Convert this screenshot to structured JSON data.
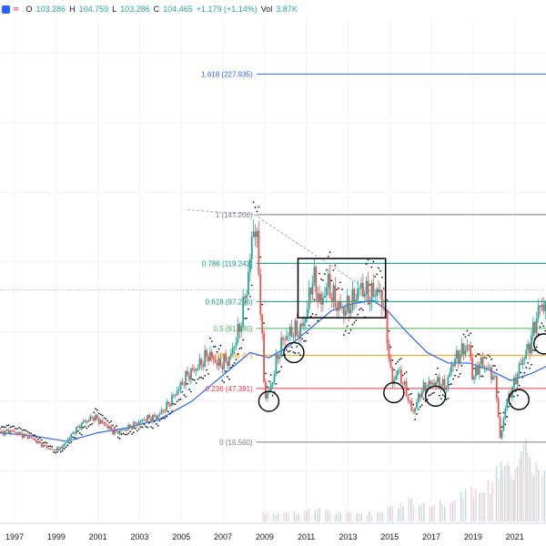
{
  "legend": {
    "open_label": "O",
    "open": "103.286",
    "high_label": "H",
    "high": "104.759",
    "low_label": "L",
    "low": "103.286",
    "close_label": "C",
    "close": "104.465",
    "change": "+1.179 (+1.14%)",
    "vol_label": "Vol",
    "vol": "3.87K",
    "icon": "equals-icon"
  },
  "chart_data": {
    "type": "candlestick",
    "x_ticks": [
      "1997",
      "1999",
      "2001",
      "2003",
      "2005",
      "2007",
      "2009",
      "2011",
      "2013",
      "2015",
      "2017",
      "2019",
      "2021"
    ],
    "xlim": [
      1996.3,
      2022.5
    ],
    "ylim": [
      -30,
      260
    ],
    "fib_levels": [
      {
        "label": "1.618 (227.935)",
        "ratio": 1.618,
        "price": 227.935,
        "color": "#2962ff"
      },
      {
        "label": "1 (147.200)",
        "ratio": 1,
        "price": 147.2,
        "color": "#787b86"
      },
      {
        "label": "0.786 (119.243)",
        "ratio": 0.786,
        "price": 119.243,
        "color": "#089981"
      },
      {
        "label": "0.618 (97.296)",
        "ratio": 0.618,
        "price": 97.296,
        "color": "#089981"
      },
      {
        "label": "0.5 (81.880)",
        "ratio": 0.5,
        "price": 81.88,
        "color": "#4caf50"
      },
      {
        "label": "0.382 (66.4..)",
        "ratio": 0.382,
        "price": 66.46,
        "color": "#ff9800"
      },
      {
        "label": "0.236 (47.391)",
        "ratio": 0.236,
        "price": 47.391,
        "color": "#f23645"
      },
      {
        "label": "0 (16.560)",
        "ratio": 0,
        "price": 16.56,
        "color": "#787b86"
      }
    ],
    "price_series": [
      [
        1996.3,
        22
      ],
      [
        1996.8,
        23
      ],
      [
        1997.3,
        21
      ],
      [
        1997.8,
        19
      ],
      [
        1998.3,
        15
      ],
      [
        1998.8,
        12
      ],
      [
        1999.3,
        14
      ],
      [
        1999.8,
        22
      ],
      [
        2000.3,
        28
      ],
      [
        2000.8,
        31
      ],
      [
        2001.3,
        27
      ],
      [
        2001.8,
        22
      ],
      [
        2002.3,
        24
      ],
      [
        2002.8,
        27
      ],
      [
        2003.3,
        30
      ],
      [
        2003.8,
        31
      ],
      [
        2004.3,
        37
      ],
      [
        2004.8,
        46
      ],
      [
        2005.3,
        55
      ],
      [
        2005.8,
        60
      ],
      [
        2006.3,
        67
      ],
      [
        2006.8,
        61
      ],
      [
        2007.3,
        64
      ],
      [
        2007.8,
        82
      ],
      [
        2008.2,
        110
      ],
      [
        2008.5,
        145
      ],
      [
        2008.7,
        120
      ],
      [
        2008.9,
        70
      ],
      [
        2009.0,
        42
      ],
      [
        2009.3,
        48
      ],
      [
        2009.6,
        65
      ],
      [
        2009.9,
        76
      ],
      [
        2010.3,
        80
      ],
      [
        2010.7,
        80
      ],
      [
        2011.0,
        90
      ],
      [
        2011.3,
        112
      ],
      [
        2011.7,
        95
      ],
      [
        2012.0,
        108
      ],
      [
        2012.4,
        96
      ],
      [
        2012.8,
        92
      ],
      [
        2013.2,
        97
      ],
      [
        2013.6,
        106
      ],
      [
        2014.0,
        100
      ],
      [
        2014.4,
        104
      ],
      [
        2014.7,
        97
      ],
      [
        2014.9,
        75
      ],
      [
        2015.1,
        50
      ],
      [
        2015.4,
        58
      ],
      [
        2015.8,
        45
      ],
      [
        2016.1,
        33
      ],
      [
        2016.5,
        46
      ],
      [
        2016.9,
        50
      ],
      [
        2017.3,
        51
      ],
      [
        2017.7,
        48
      ],
      [
        2018.0,
        62
      ],
      [
        2018.4,
        68
      ],
      [
        2018.8,
        72
      ],
      [
        2019.0,
        52
      ],
      [
        2019.3,
        62
      ],
      [
        2019.8,
        58
      ],
      [
        2020.1,
        50
      ],
      [
        2020.3,
        18
      ],
      [
        2020.6,
        40
      ],
      [
        2020.9,
        48
      ],
      [
        2021.3,
        62
      ],
      [
        2021.7,
        72
      ],
      [
        2022.2,
        95
      ]
    ],
    "ma_series": [
      [
        1996.3,
        22
      ],
      [
        1998.0,
        20
      ],
      [
        1999.5,
        17
      ],
      [
        2001.0,
        22
      ],
      [
        2002.5,
        25
      ],
      [
        2004.0,
        30
      ],
      [
        2005.5,
        40
      ],
      [
        2007.0,
        55
      ],
      [
        2008.3,
        68
      ],
      [
        2009.2,
        65
      ],
      [
        2010.2,
        72
      ],
      [
        2011.2,
        82
      ],
      [
        2012.2,
        92
      ],
      [
        2013.2,
        96
      ],
      [
        2014.2,
        98
      ],
      [
        2014.9,
        92
      ],
      [
        2015.8,
        80
      ],
      [
        2016.8,
        68
      ],
      [
        2017.8,
        62
      ],
      [
        2018.8,
        62
      ],
      [
        2019.8,
        58
      ],
      [
        2020.8,
        52
      ],
      [
        2021.8,
        56
      ],
      [
        2022.5,
        60
      ]
    ],
    "marked_regions": [
      {
        "type": "rectangle",
        "x": [
          2010.6,
          2014.8
        ],
        "y": [
          88,
          122
        ]
      },
      {
        "type": "ellipse",
        "x": 2009.2,
        "y": 40
      },
      {
        "type": "ellipse",
        "x": 2010.4,
        "y": 68
      },
      {
        "type": "ellipse",
        "x": 2015.2,
        "y": 45
      },
      {
        "type": "ellipse",
        "x": 2017.2,
        "y": 43
      },
      {
        "type": "ellipse",
        "x": 2021.2,
        "y": 41
      },
      {
        "type": "ellipse",
        "x": 2022.4,
        "y": 73
      }
    ],
    "volume_series": [
      [
        2009.0,
        0.12
      ],
      [
        2009.5,
        0.1
      ],
      [
        2010.0,
        0.14
      ],
      [
        2010.5,
        0.12
      ],
      [
        2011.0,
        0.15
      ],
      [
        2011.5,
        0.16
      ],
      [
        2012.0,
        0.14
      ],
      [
        2012.5,
        0.12
      ],
      [
        2013.0,
        0.11
      ],
      [
        2013.5,
        0.1
      ],
      [
        2014.0,
        0.12
      ],
      [
        2014.5,
        0.11
      ],
      [
        2015.0,
        0.18
      ],
      [
        2015.5,
        0.22
      ],
      [
        2016.0,
        0.28
      ],
      [
        2016.5,
        0.22
      ],
      [
        2017.0,
        0.2
      ],
      [
        2017.5,
        0.24
      ],
      [
        2018.0,
        0.3
      ],
      [
        2018.5,
        0.38
      ],
      [
        2019.0,
        0.42
      ],
      [
        2019.4,
        0.55
      ],
      [
        2019.8,
        0.5
      ],
      [
        2020.2,
        0.7
      ],
      [
        2020.5,
        0.85
      ],
      [
        2020.8,
        0.65
      ],
      [
        2021.1,
        0.75
      ],
      [
        2021.4,
        1.0
      ],
      [
        2021.7,
        0.8
      ],
      [
        2022.0,
        0.72
      ],
      [
        2022.4,
        0.6
      ]
    ],
    "colors": {
      "up": "#26a69a",
      "down": "#ef5350",
      "ma": "#2962ff",
      "sar": "#131722",
      "volume_up": "#b2dfdb",
      "volume_down": "#ffcdd2"
    }
  }
}
